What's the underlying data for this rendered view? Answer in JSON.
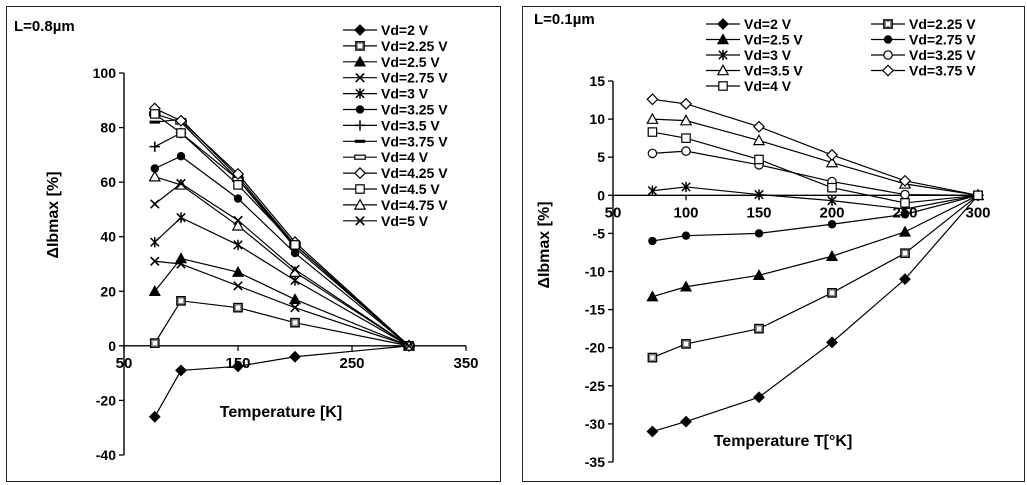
{
  "chart_data": [
    {
      "type": "line",
      "title": "L=0.8µm",
      "xlabel": "Temperature [K]",
      "ylabel": "ΔIbmax [%]",
      "xlim": [
        50,
        350
      ],
      "ylim": [
        -40,
        100
      ],
      "xticks": [
        "50",
        "150",
        "250",
        "350"
      ],
      "yticks": [
        "-40",
        "-20",
        "0",
        "20",
        "40",
        "60",
        "80",
        "100"
      ],
      "legend_placement": "top-right",
      "series": [
        {
          "name": "Vd=2 V",
          "marker": "diamond-filled",
          "points": [
            [
              77,
              -26
            ],
            [
              100,
              -9
            ],
            [
              150,
              -7.5
            ],
            [
              200,
              -4
            ],
            [
              300,
              0
            ]
          ]
        },
        {
          "name": "Vd=2.25 V",
          "marker": "square-hatched",
          "points": [
            [
              77,
              1
            ],
            [
              100,
              16.5
            ],
            [
              150,
              14
            ],
            [
              200,
              8.5
            ],
            [
              300,
              0
            ]
          ]
        },
        {
          "name": "Vd=2.5 V",
          "marker": "triangle-filled",
          "points": [
            [
              77,
              20
            ],
            [
              100,
              32
            ],
            [
              150,
              27
            ],
            [
              200,
              17
            ],
            [
              300,
              0
            ]
          ]
        },
        {
          "name": "Vd=2.75 V",
          "marker": "x",
          "points": [
            [
              77,
              31
            ],
            [
              100,
              30
            ],
            [
              150,
              22
            ],
            [
              200,
              14
            ],
            [
              300,
              0
            ]
          ]
        },
        {
          "name": "Vd=3 V",
          "marker": "asterisk",
          "points": [
            [
              77,
              38
            ],
            [
              100,
              47
            ],
            [
              150,
              37
            ],
            [
              200,
              24
            ],
            [
              300,
              0
            ]
          ]
        },
        {
          "name": "Vd=3.25 V",
          "marker": "circle-filled",
          "points": [
            [
              77,
              65
            ],
            [
              100,
              69.5
            ],
            [
              150,
              54
            ],
            [
              200,
              34
            ],
            [
              300,
              0
            ]
          ]
        },
        {
          "name": "Vd=3.5 V",
          "marker": "plus",
          "points": [
            [
              77,
              73
            ],
            [
              100,
              78
            ],
            [
              150,
              61
            ],
            [
              200,
              36
            ],
            [
              300,
              0
            ]
          ]
        },
        {
          "name": "Vd=3.75 V",
          "marker": "dash",
          "points": [
            [
              77,
              82
            ],
            [
              100,
              83
            ],
            [
              150,
              62
            ],
            [
              200,
              37
            ],
            [
              300,
              0
            ]
          ]
        },
        {
          "name": "Vd=4 V",
          "marker": "dash-hollow",
          "points": [
            [
              77,
              85
            ],
            [
              100,
              82
            ],
            [
              150,
              61
            ],
            [
              200,
              37
            ],
            [
              300,
              0
            ]
          ]
        },
        {
          "name": "Vd=4.25 V",
          "marker": "diamond-hollow",
          "points": [
            [
              77,
              87
            ],
            [
              100,
              82.5
            ],
            [
              150,
              63
            ],
            [
              200,
              38
            ],
            [
              300,
              0
            ]
          ]
        },
        {
          "name": "Vd=4.5 V",
          "marker": "square-hollow",
          "points": [
            [
              77,
              85
            ],
            [
              100,
              78
            ],
            [
              150,
              59
            ],
            [
              200,
              37
            ],
            [
              300,
              0
            ]
          ]
        },
        {
          "name": "Vd=4.75 V",
          "marker": "triangle-hollow",
          "points": [
            [
              77,
              62
            ],
            [
              100,
              59
            ],
            [
              150,
              44
            ],
            [
              200,
              27
            ],
            [
              300,
              0
            ]
          ]
        },
        {
          "name": "Vd=5 V",
          "marker": "x",
          "points": [
            [
              77,
              52
            ],
            [
              100,
              59.5
            ],
            [
              150,
              46
            ],
            [
              200,
              28
            ],
            [
              300,
              0
            ]
          ]
        }
      ]
    },
    {
      "type": "line",
      "title": "L=0.1µm",
      "xlabel": "Temperature T[°K]",
      "ylabel": "ΔIbmax [%]",
      "xlim": [
        50,
        300
      ],
      "ylim": [
        -35,
        15
      ],
      "xticks": [
        "50",
        "100",
        "150",
        "200",
        "250",
        "300"
      ],
      "yticks": [
        "-35",
        "-30",
        "-25",
        "-20",
        "-15",
        "-10",
        "-5",
        "0",
        "5",
        "10",
        "15"
      ],
      "legend_placement": "top",
      "series": [
        {
          "name": "Vd=2 V",
          "marker": "diamond-filled",
          "points": [
            [
              77,
              -31
            ],
            [
              100,
              -29.7
            ],
            [
              150,
              -26.5
            ],
            [
              200,
              -19.3
            ],
            [
              250,
              -11
            ],
            [
              300,
              0
            ]
          ]
        },
        {
          "name": "Vd=2.25 V",
          "marker": "square-hatched",
          "points": [
            [
              77,
              -21.3
            ],
            [
              100,
              -19.5
            ],
            [
              150,
              -17.5
            ],
            [
              200,
              -12.8
            ],
            [
              250,
              -7.6
            ],
            [
              300,
              0
            ]
          ]
        },
        {
          "name": "Vd=2.5 V",
          "marker": "triangle-filled",
          "points": [
            [
              77,
              -13.3
            ],
            [
              100,
              -12
            ],
            [
              150,
              -10.5
            ],
            [
              200,
              -8
            ],
            [
              250,
              -4.8
            ],
            [
              300,
              0
            ]
          ]
        },
        {
          "name": "Vd=2.75 V",
          "marker": "circle-filled",
          "points": [
            [
              77,
              -6
            ],
            [
              100,
              -5.3
            ],
            [
              150,
              -5
            ],
            [
              200,
              -3.8
            ],
            [
              250,
              -2.5
            ],
            [
              300,
              0
            ]
          ]
        },
        {
          "name": "Vd=3 V",
          "marker": "asterisk",
          "points": [
            [
              77,
              0.6
            ],
            [
              100,
              1.1
            ],
            [
              150,
              0.1
            ],
            [
              200,
              -0.7
            ],
            [
              250,
              -1.8
            ],
            [
              300,
              0
            ]
          ]
        },
        {
          "name": "Vd=3.25 V",
          "marker": "circle-hollow",
          "points": [
            [
              77,
              5.5
            ],
            [
              100,
              5.8
            ],
            [
              150,
              4
            ],
            [
              200,
              1.8
            ],
            [
              250,
              0.1
            ],
            [
              300,
              0
            ]
          ]
        },
        {
          "name": "Vd=3.5 V",
          "marker": "triangle-hollow",
          "points": [
            [
              77,
              10
            ],
            [
              100,
              9.8
            ],
            [
              150,
              7.2
            ],
            [
              200,
              4.3
            ],
            [
              250,
              1.5
            ],
            [
              300,
              0
            ]
          ]
        },
        {
          "name": "Vd=3.75 V",
          "marker": "diamond-hollow",
          "points": [
            [
              77,
              12.6
            ],
            [
              100,
              12
            ],
            [
              150,
              9
            ],
            [
              200,
              5.3
            ],
            [
              250,
              1.9
            ],
            [
              300,
              0
            ]
          ]
        },
        {
          "name": "Vd=4 V",
          "marker": "square-hollow",
          "points": [
            [
              77,
              8.3
            ],
            [
              100,
              7.5
            ],
            [
              150,
              4.7
            ],
            [
              200,
              1
            ],
            [
              250,
              -1
            ],
            [
              300,
              0
            ]
          ]
        }
      ]
    }
  ]
}
